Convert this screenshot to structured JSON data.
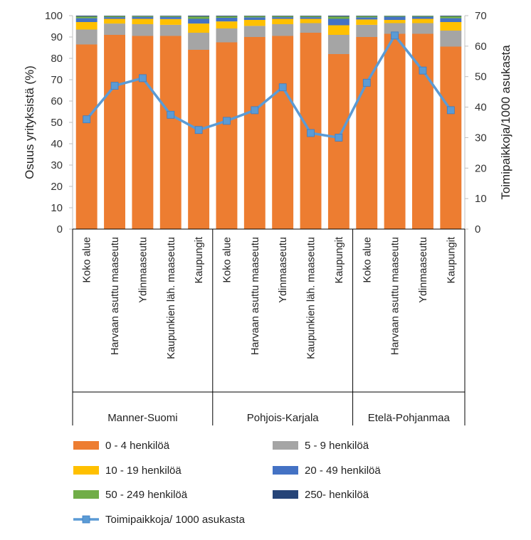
{
  "chart_data": {
    "type": "bar",
    "stacked": true,
    "y_left": {
      "label": "Osuus yrityksistä (%)",
      "lim": [
        0,
        100
      ],
      "ticks": [
        0,
        10,
        20,
        30,
        40,
        50,
        60,
        70,
        80,
        90,
        100
      ]
    },
    "y_right": {
      "label": "Toimipaikkoja/1000 asukasta",
      "lim": [
        0,
        70
      ],
      "ticks": [
        0,
        10,
        20,
        30,
        40,
        50,
        60,
        70
      ]
    },
    "grid": false,
    "groups": [
      {
        "name": "Manner-Suomi",
        "categories": [
          "Koko alue",
          "Harvaan asuttu maaseutu",
          "Ydinmaaseutu",
          "Kaupunkien läh. maaseutu",
          "Kaupungit"
        ]
      },
      {
        "name": "Pohjois-Karjala",
        "categories": [
          "Koko alue",
          "Harvaan asuttu maaseutu",
          "Ydinmaaseutu",
          "Kaupunkien läh. maaseutu",
          "Kaupungit"
        ]
      },
      {
        "name": "Etelä-Pohjanmaa",
        "categories": [
          "Koko alue",
          "Harvaan asuttu maaseutu",
          "Ydinmaaseutu",
          "Kaupungit"
        ]
      }
    ],
    "series": [
      {
        "name": "0 - 4 henkilöä",
        "color": "#ED7D31",
        "axis": "left",
        "values": [
          86.5,
          91,
          90.5,
          90.5,
          84,
          87.5,
          90,
          90.5,
          92,
          82,
          90,
          91.5,
          91.5,
          85.5
        ]
      },
      {
        "name": "5 - 9 henkilöä",
        "color": "#A5A5A5",
        "axis": "left",
        "values": [
          7,
          5.3,
          5.5,
          5.2,
          8,
          6.5,
          5.2,
          5.5,
          4.5,
          9,
          5.7,
          5,
          5,
          7.5
        ]
      },
      {
        "name": "10 - 19 henkilöä",
        "color": "#FFC000",
        "axis": "left",
        "values": [
          3.5,
          2.2,
          2.5,
          2.7,
          4.3,
          3.3,
          2.8,
          2.5,
          2,
          4.5,
          2.5,
          1.5,
          2,
          4
        ]
      },
      {
        "name": "20 - 49 henkilöä",
        "color": "#4472C4",
        "axis": "left",
        "values": [
          1.8,
          0.8,
          0.9,
          1,
          2.2,
          1.7,
          1.2,
          0.8,
          0.8,
          3,
          1,
          1.5,
          1,
          1.8
        ]
      },
      {
        "name": "50 - 249 henkilöä",
        "color": "#70AD47",
        "axis": "left",
        "values": [
          0.8,
          0.5,
          0.4,
          0.4,
          1.1,
          0.7,
          0.6,
          0.5,
          0.5,
          1.1,
          0.6,
          0.4,
          0.4,
          0.9
        ]
      },
      {
        "name": "250- henkilöä",
        "color": "#264478",
        "axis": "left",
        "values": [
          0.4,
          0.2,
          0.2,
          0.2,
          0.4,
          0.3,
          0.2,
          0.2,
          0.2,
          0.4,
          0.2,
          0.1,
          0.1,
          0.3
        ]
      },
      {
        "name": "Toimipaikkoja/ 1000 asukasta",
        "type": "line",
        "color": "#5B9BD5",
        "axis": "right",
        "values": [
          36,
          47,
          49.5,
          37.5,
          32.5,
          35.5,
          39,
          46.5,
          31.5,
          30,
          48,
          63.5,
          52,
          39
        ]
      }
    ],
    "legend_position": "bottom"
  }
}
